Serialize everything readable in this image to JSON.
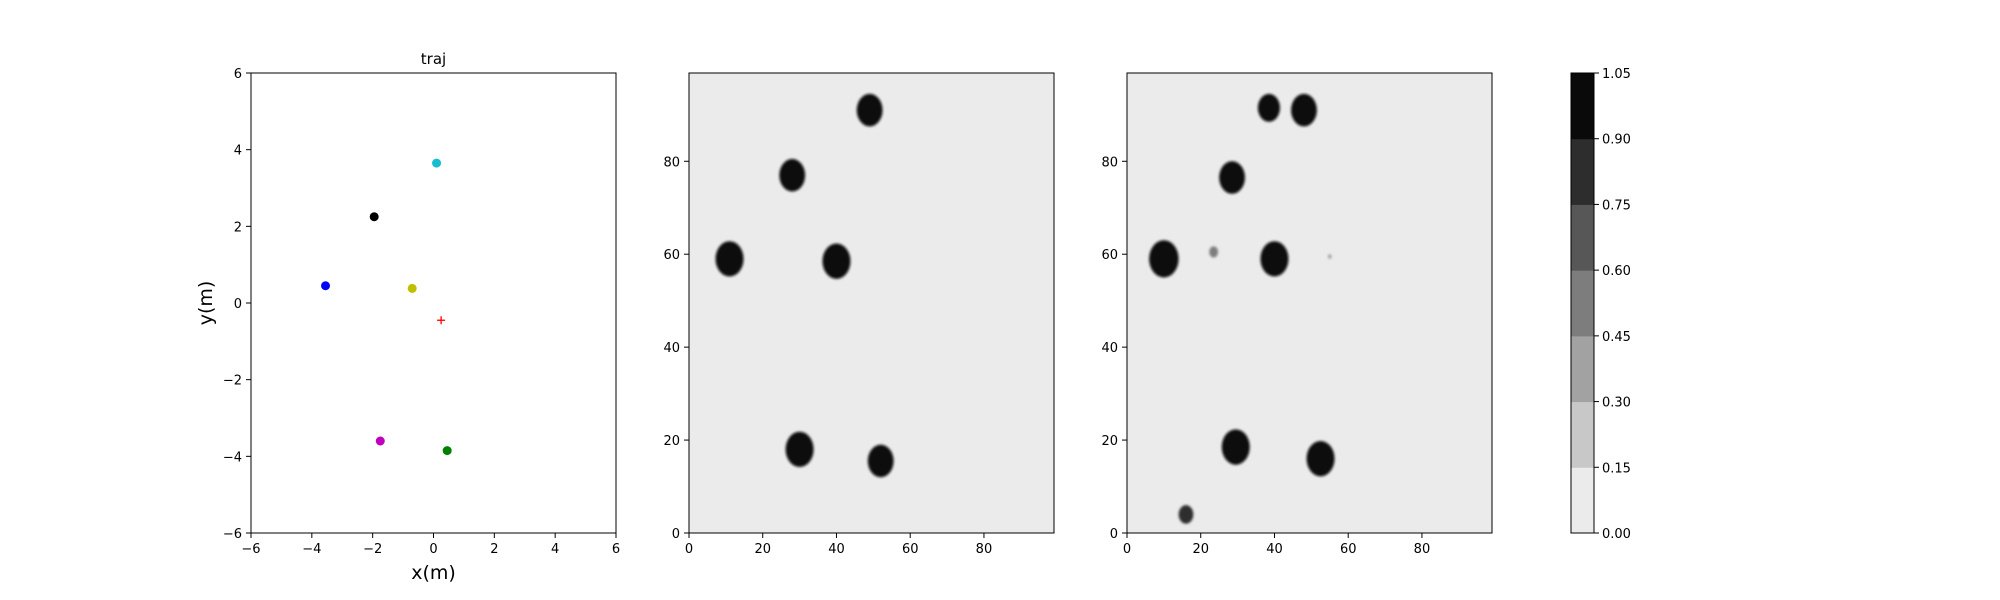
{
  "chart_data": [
    {
      "type": "scatter",
      "title": "traj",
      "xlabel": "x(m)",
      "ylabel": "y(m)",
      "xlim": [
        -6,
        6
      ],
      "ylim": [
        -6,
        6
      ],
      "xticks": [
        "−6",
        "−4",
        "−2",
        "0",
        "2",
        "4",
        "6"
      ],
      "yticks": [
        "−6",
        "−4",
        "−2",
        "0",
        "2",
        "4",
        "6"
      ],
      "grid": false,
      "points": [
        {
          "x": 0.1,
          "y": 3.65,
          "color": "#17becf",
          "marker": "circle"
        },
        {
          "x": -1.95,
          "y": 2.25,
          "color": "#000000",
          "marker": "circle"
        },
        {
          "x": -3.55,
          "y": 0.45,
          "color": "#0000ff",
          "marker": "circle"
        },
        {
          "x": -0.7,
          "y": 0.38,
          "color": "#bfbf00",
          "marker": "circle"
        },
        {
          "x": 0.25,
          "y": -0.45,
          "color": "#ff0000",
          "marker": "plus"
        },
        {
          "x": -1.75,
          "y": -3.6,
          "color": "#bf00bf",
          "marker": "circle"
        },
        {
          "x": 0.45,
          "y": -3.85,
          "color": "#008000",
          "marker": "circle"
        }
      ]
    },
    {
      "type": "heatmap",
      "title": "",
      "xlim": [
        0,
        99
      ],
      "ylim": [
        0,
        99
      ],
      "xticks": [
        "0",
        "20",
        "40",
        "60",
        "80"
      ],
      "yticks": [
        "0",
        "20",
        "40",
        "60",
        "80"
      ],
      "background_value": 0.0,
      "blobs": [
        {
          "x": 49,
          "y": 91,
          "r": 3.5,
          "value": 1.0
        },
        {
          "x": 28,
          "y": 77,
          "r": 3.5,
          "value": 1.0
        },
        {
          "x": 11,
          "y": 59,
          "r": 3.8,
          "value": 1.0
        },
        {
          "x": 40,
          "y": 58.5,
          "r": 3.8,
          "value": 1.0
        },
        {
          "x": 30,
          "y": 18,
          "r": 3.8,
          "value": 1.0
        },
        {
          "x": 52,
          "y": 15.5,
          "r": 3.5,
          "value": 1.0
        }
      ]
    },
    {
      "type": "heatmap",
      "title": "",
      "xlim": [
        0,
        99
      ],
      "ylim": [
        0,
        99
      ],
      "xticks": [
        "0",
        "20",
        "40",
        "60",
        "80"
      ],
      "yticks": [
        "0",
        "20",
        "40",
        "60",
        "80"
      ],
      "background_value": 0.0,
      "blobs": [
        {
          "x": 38.5,
          "y": 91.5,
          "r": 3.0,
          "value": 0.95
        },
        {
          "x": 48,
          "y": 91,
          "r": 3.5,
          "value": 1.0
        },
        {
          "x": 28.5,
          "y": 76.5,
          "r": 3.5,
          "value": 1.0
        },
        {
          "x": 10,
          "y": 59,
          "r": 4.0,
          "value": 1.0
        },
        {
          "x": 23.5,
          "y": 60.5,
          "r": 1.2,
          "value": 0.5
        },
        {
          "x": 40,
          "y": 59,
          "r": 3.8,
          "value": 1.0
        },
        {
          "x": 55,
          "y": 59.5,
          "r": 0.5,
          "value": 0.3
        },
        {
          "x": 29.5,
          "y": 18.5,
          "r": 3.8,
          "value": 1.0
        },
        {
          "x": 52.5,
          "y": 16,
          "r": 3.8,
          "value": 1.0
        },
        {
          "x": 16,
          "y": 4,
          "r": 2.0,
          "value": 0.75
        }
      ]
    }
  ],
  "colorbar": {
    "ticks": [
      "0.00",
      "0.15",
      "0.30",
      "0.45",
      "0.60",
      "0.75",
      "0.90",
      "1.05"
    ],
    "levels": [
      "#ebebeb",
      "#c8c8c8",
      "#a2a2a2",
      "#7d7d7d",
      "#575757",
      "#2d2d2d",
      "#0a0a0a"
    ]
  }
}
